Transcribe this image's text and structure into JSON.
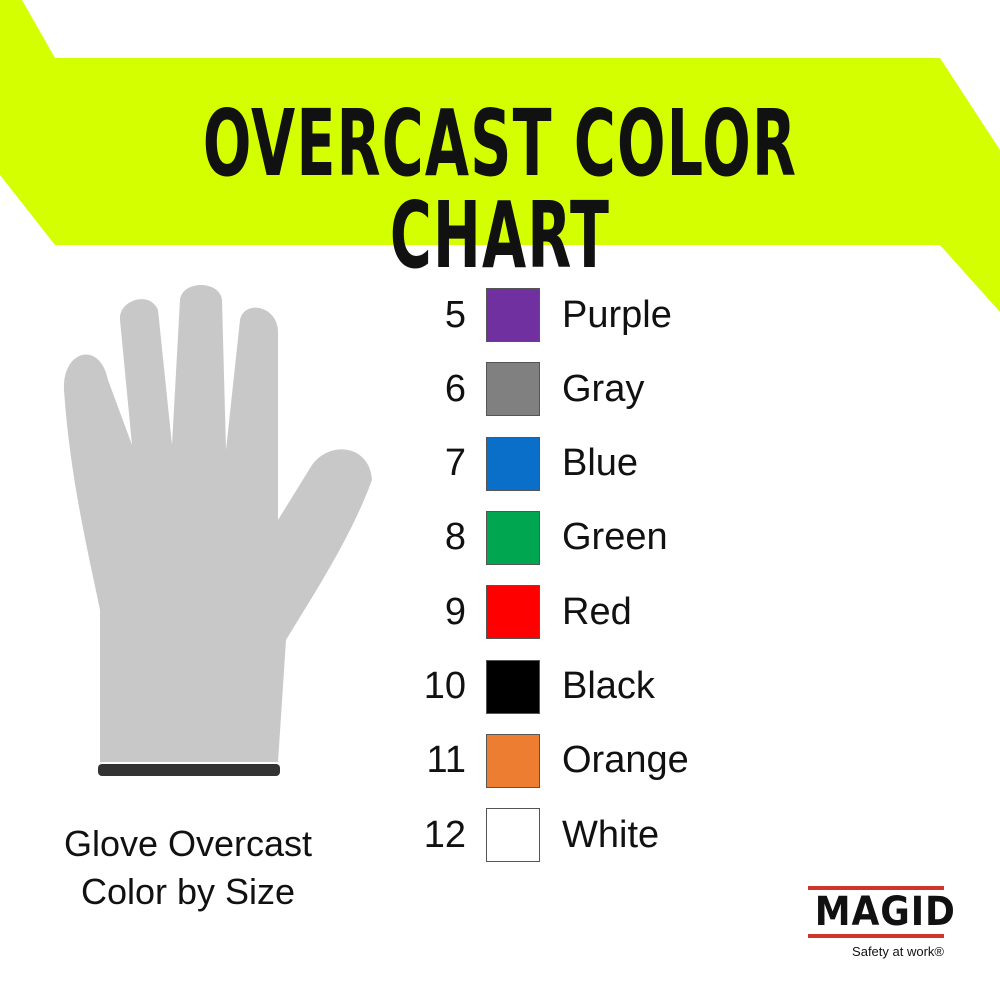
{
  "title": "OVERCAST COLOR CHART",
  "caption": {
    "line1": "Glove Overcast",
    "line2": "Color by Size"
  },
  "colors": {
    "banner": "#d4ff00",
    "glove": "#c8c8c8",
    "cuff": "#333333"
  },
  "chart_rows": [
    {
      "size": "5",
      "name": "Purple",
      "hex": "#7030a0"
    },
    {
      "size": "6",
      "name": "Gray",
      "hex": "#808080"
    },
    {
      "size": "7",
      "name": "Blue",
      "hex": "#0a6fc8"
    },
    {
      "size": "8",
      "name": "Green",
      "hex": "#00a650"
    },
    {
      "size": "9",
      "name": "Red",
      "hex": "#ff0000"
    },
    {
      "size": "10",
      "name": "Black",
      "hex": "#000000"
    },
    {
      "size": "11",
      "name": "Orange",
      "hex": "#ed7d31"
    },
    {
      "size": "12",
      "name": "White",
      "hex": "#ffffff"
    }
  ],
  "logo": {
    "brand": "MAGID",
    "tagline": "Safety at work®"
  }
}
